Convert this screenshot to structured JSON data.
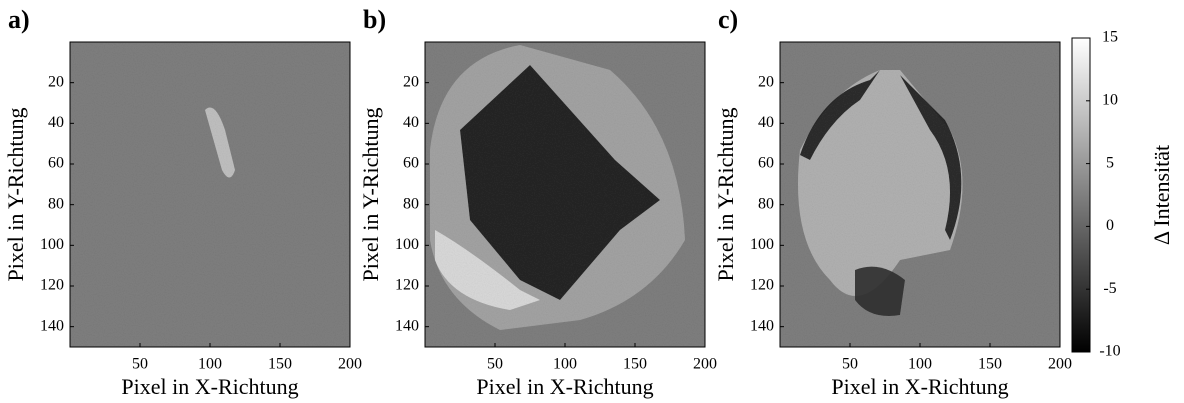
{
  "chart_data": [
    {
      "type": "heatmap",
      "panel_label": "a)",
      "x_label": "Pixel in X-Richtung",
      "y_label": "Pixel in Y-Richtung",
      "xlim": [
        0,
        200
      ],
      "ylim": [
        0,
        150
      ],
      "y_reversed": true,
      "xticks": [
        50,
        100,
        150,
        200
      ],
      "yticks": [
        20,
        40,
        60,
        80,
        100,
        120,
        140
      ]
    },
    {
      "type": "heatmap",
      "panel_label": "b)",
      "x_label": "Pixel in X-Richtung",
      "y_label": "Pixel in Y-Richtung",
      "xlim": [
        0,
        200
      ],
      "ylim": [
        0,
        150
      ],
      "y_reversed": true,
      "xticks": [
        50,
        100,
        150,
        200
      ],
      "yticks": [
        20,
        40,
        60,
        80,
        100,
        120,
        140
      ]
    },
    {
      "type": "heatmap",
      "panel_label": "c)",
      "x_label": "Pixel in X-Richtung",
      "y_label": "Pixel in Y-Richtung",
      "xlim": [
        0,
        200
      ],
      "ylim": [
        0,
        150
      ],
      "y_reversed": true,
      "xticks": [
        50,
        100,
        150,
        200
      ],
      "yticks": [
        20,
        40,
        60,
        80,
        100,
        120,
        140
      ]
    },
    {
      "type": "colorbar",
      "label": "Δ Intensität",
      "ylim": [
        -10,
        15
      ],
      "yticks": [
        -10,
        -5,
        0,
        5,
        10,
        15
      ]
    }
  ]
}
